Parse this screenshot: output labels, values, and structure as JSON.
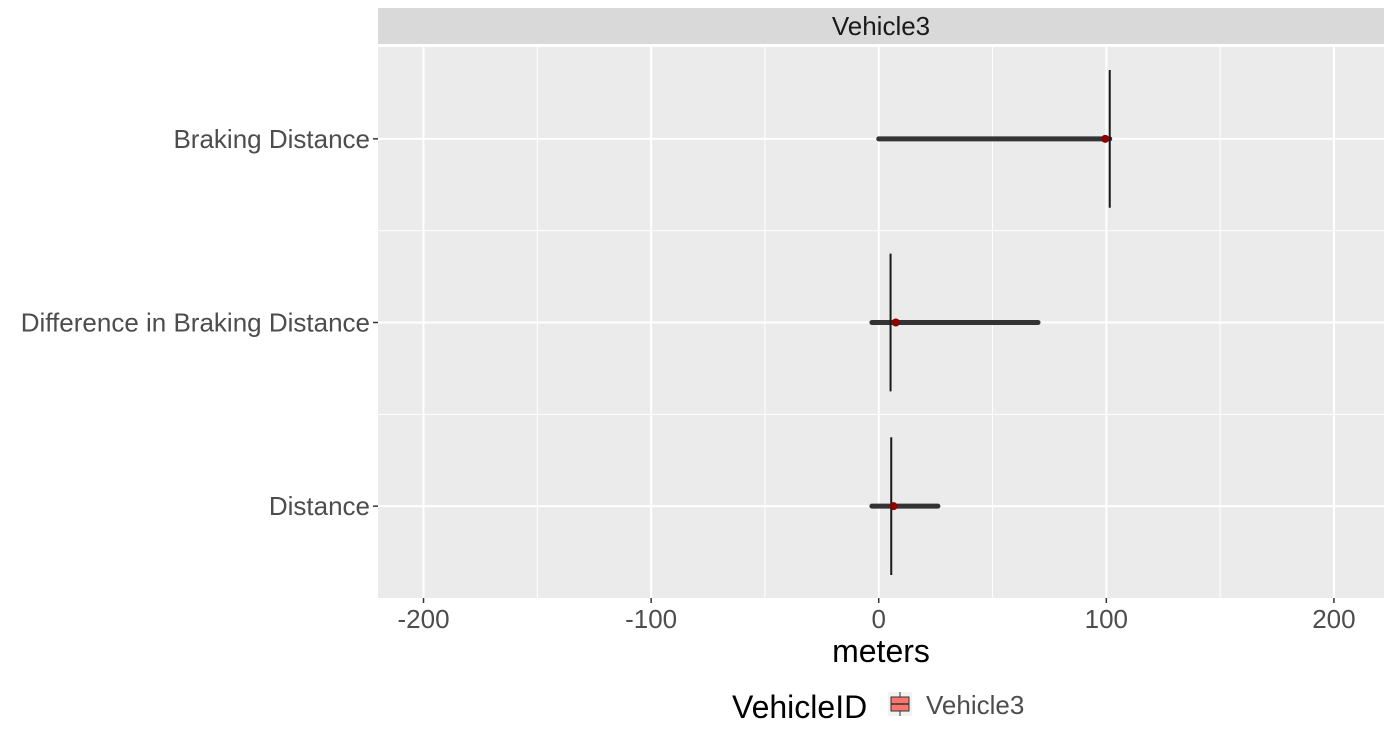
{
  "chart_data": {
    "type": "boxplot",
    "facet_label": "Vehicle3",
    "xlabel": "meters",
    "ylabel": "",
    "xlim": [
      -220,
      222
    ],
    "x_ticks": [
      -200,
      -100,
      0,
      100,
      200
    ],
    "x_tick_labels": [
      "-200",
      "-100",
      "0",
      "100",
      "200"
    ],
    "categories": [
      "Braking Distance",
      "Difference in Braking Distance",
      "Distance"
    ],
    "series": [
      {
        "name": "Vehicle3",
        "boxes": [
          {
            "category": "Braking Distance",
            "min": 101.5,
            "q1": 101.5,
            "median": 101.5,
            "q3": 101.5,
            "max": 101.5,
            "mean": 99.5,
            "outliers_from": 0,
            "outliers_to": 101.5
          },
          {
            "category": "Difference in Braking Distance",
            "min": 5.2,
            "q1": 5.2,
            "median": 5.2,
            "q3": 5.2,
            "max": 5.2,
            "mean": 7.5,
            "outliers_from": -3,
            "outliers_to": 70
          },
          {
            "category": "Distance",
            "min": 5.5,
            "q1": 5.5,
            "median": 5.5,
            "q3": 5.5,
            "max": 5.5,
            "mean": 6.5,
            "outliers_from": -3,
            "outliers_to": 26
          }
        ]
      }
    ],
    "grid": true,
    "legend": {
      "title": "VehicleID",
      "position": "bottom",
      "items": [
        {
          "label": "Vehicle3",
          "color": "#F8766D"
        }
      ]
    },
    "colors": {
      "panel_bg": "#EBEBEB",
      "strip_bg": "#D9D9D9",
      "grid": "#FFFFFF",
      "outlier": "#333333",
      "box_line": "#1a1a1a",
      "mean_point": "#8B0000",
      "fill": "#F8766D"
    }
  }
}
